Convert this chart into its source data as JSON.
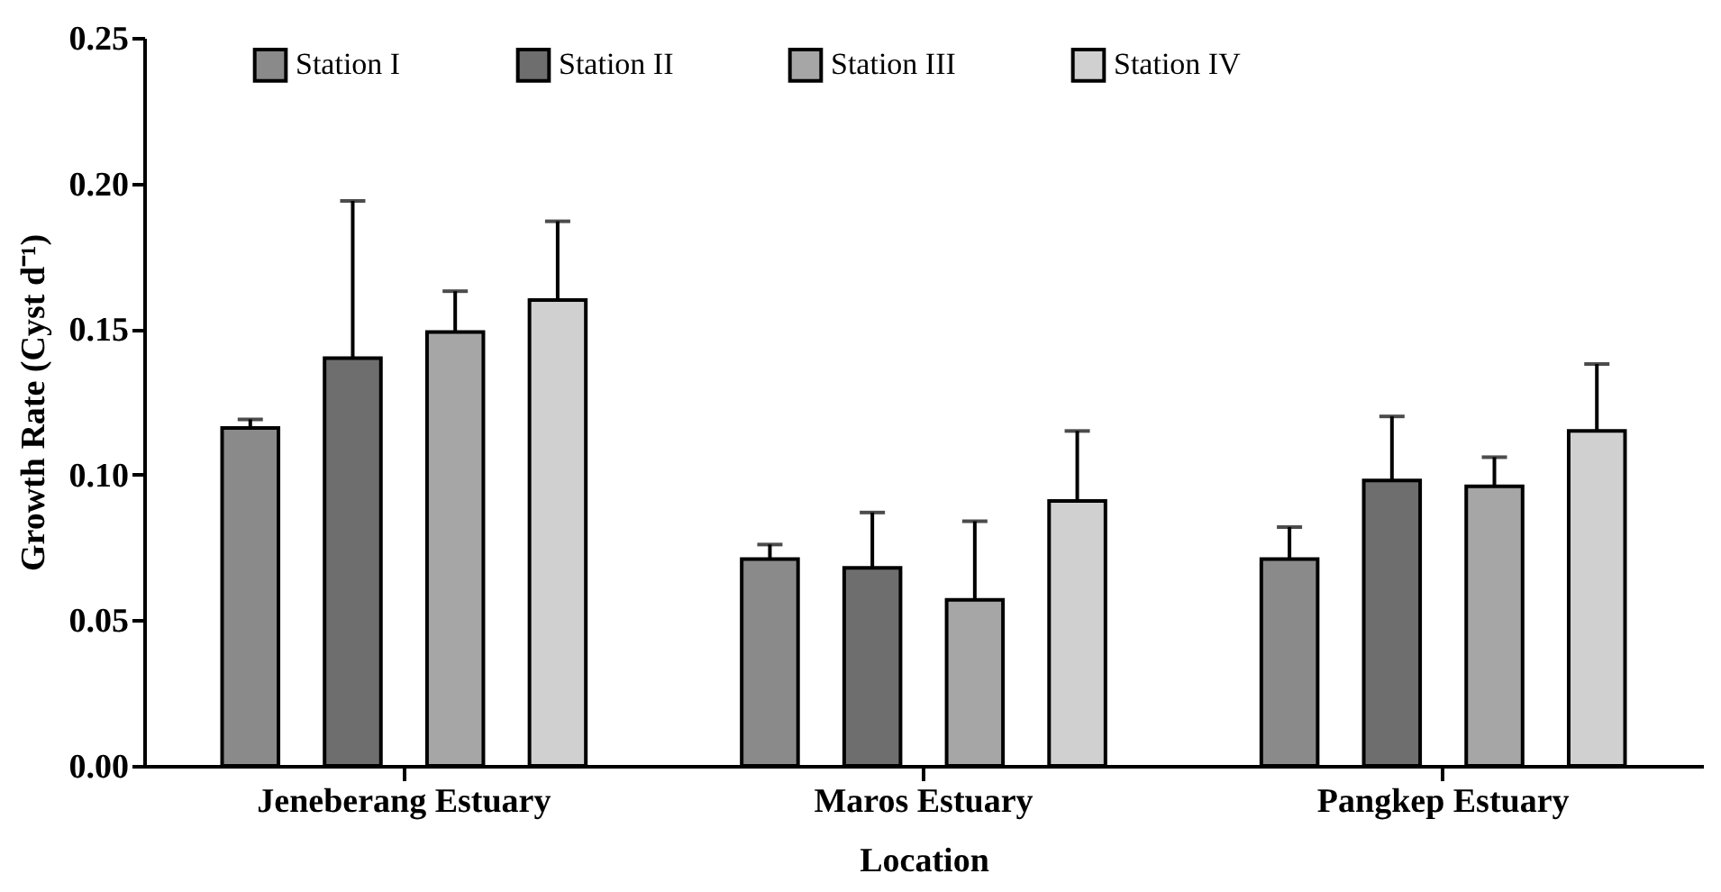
{
  "chart_data": {
    "type": "bar",
    "xlabel": "Location",
    "ylabel": "Growth Rate (Cyst d⁻¹)",
    "categories": [
      "Jeneberang Estuary",
      "Maros Estuary",
      "Pangkep Estuary"
    ],
    "series": [
      {
        "name": "Station I",
        "color": "#8a8a8a",
        "values": [
          0.116,
          0.071,
          0.071
        ],
        "errors": [
          [
            0.116,
            0.119
          ],
          [
            0.071,
            0.076
          ],
          [
            0.071,
            0.082
          ]
        ]
      },
      {
        "name": "Station II",
        "color": "#6e6e6e",
        "values": [
          0.14,
          0.068,
          0.098
        ],
        "errors": [
          [
            0.14,
            0.194
          ],
          [
            0.068,
            0.087
          ],
          [
            0.098,
            0.12
          ]
        ]
      },
      {
        "name": "Station III",
        "color": "#a6a6a6",
        "values": [
          0.149,
          0.057,
          0.096
        ],
        "errors": [
          [
            0.149,
            0.163
          ],
          [
            0.057,
            0.084
          ],
          [
            0.096,
            0.106
          ]
        ]
      },
      {
        "name": "Station IV",
        "color": "#d0d0d0",
        "values": [
          0.16,
          0.091,
          0.115
        ],
        "errors": [
          [
            0.16,
            0.187
          ],
          [
            0.091,
            0.115
          ],
          [
            0.115,
            0.138
          ]
        ]
      }
    ],
    "ylim": [
      0,
      0.25
    ],
    "yticks": [
      {
        "value": 0,
        "label": "0.00"
      },
      {
        "value": 0.05,
        "label": "0.05"
      },
      {
        "value": 0.1,
        "label": "0.10"
      },
      {
        "value": 0.15,
        "label": "0.15"
      },
      {
        "value": 0.2,
        "label": "0.20"
      },
      {
        "value": 0.25,
        "label": "0.25"
      }
    ],
    "grid": false,
    "legend": "top"
  }
}
